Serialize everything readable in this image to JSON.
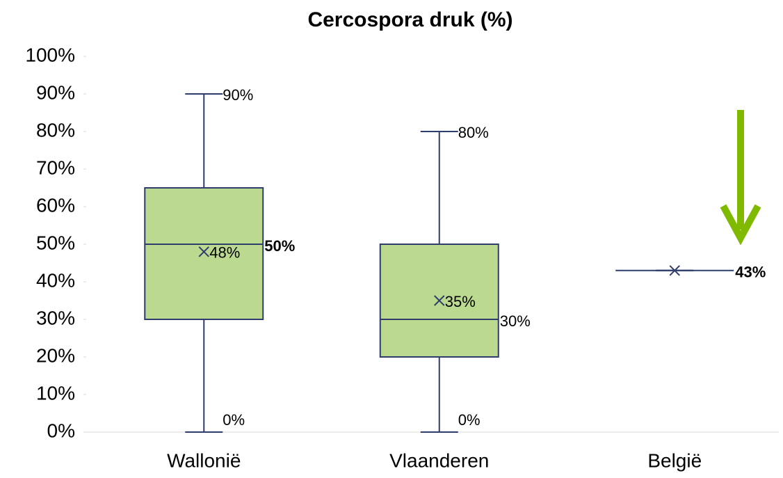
{
  "chart_data": {
    "type": "box",
    "title": "Cercospora druk (%)",
    "categories": [
      "Wallonië",
      "Vlaanderen",
      "België"
    ],
    "boxes": [
      {
        "min": 0,
        "q1": 30,
        "median": 50,
        "q3": 65,
        "max": 90,
        "mean": 48,
        "median_label_bold": true,
        "value_labels": {
          "min": "0%",
          "median": "50%",
          "max": "90%",
          "mean": "48%"
        }
      },
      {
        "min": 0,
        "q1": 20,
        "median": 30,
        "q3": 50,
        "max": 80,
        "mean": 35,
        "median_label_bold": false,
        "value_labels": {
          "min": "0%",
          "median": "30%",
          "max": "80%",
          "mean": "35%"
        }
      },
      {
        "min": 43,
        "q1": 43,
        "median": 43,
        "q3": 43,
        "max": 43,
        "mean": 43,
        "median_label_bold": true,
        "value_labels": {
          "median": "43%"
        }
      }
    ],
    "color": "#bbd98f",
    "line_color": "#2e3d6b",
    "ylim": [
      0,
      100
    ],
    "yticks": [
      {
        "value": 0,
        "label": "0%"
      },
      {
        "value": 10,
        "label": "10%"
      },
      {
        "value": 20,
        "label": "20%"
      },
      {
        "value": 30,
        "label": "30%"
      },
      {
        "value": 40,
        "label": "40%"
      },
      {
        "value": 50,
        "label": "50%"
      },
      {
        "value": 60,
        "label": "60%"
      },
      {
        "value": 70,
        "label": "70%"
      },
      {
        "value": 80,
        "label": "80%"
      },
      {
        "value": 90,
        "label": "90%"
      },
      {
        "value": 100,
        "label": "100%"
      }
    ],
    "grid": false
  }
}
